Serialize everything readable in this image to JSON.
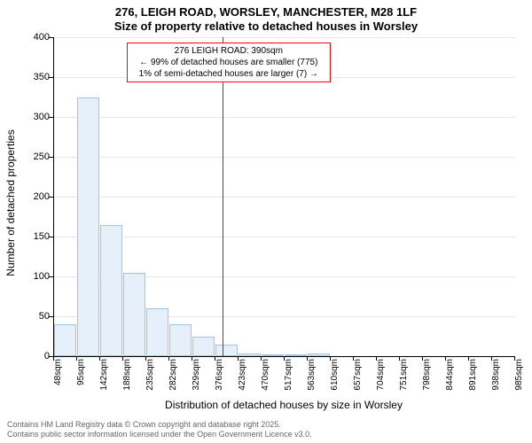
{
  "chart": {
    "type": "histogram",
    "title_line1": "276, LEIGH ROAD, WORSLEY, MANCHESTER, M28 1LF",
    "title_line2": "Size of property relative to detached houses in Worsley",
    "y_axis_label": "Number of detached properties",
    "x_axis_label": "Distribution of detached houses by size in Worsley",
    "y_ticks": [
      0,
      50,
      100,
      150,
      200,
      250,
      300,
      350,
      400
    ],
    "ylim": [
      0,
      400
    ],
    "x_ticks": [
      "48sqm",
      "95sqm",
      "142sqm",
      "188sqm",
      "235sqm",
      "282sqm",
      "329sqm",
      "376sqm",
      "423sqm",
      "470sqm",
      "517sqm",
      "563sqm",
      "610sqm",
      "657sqm",
      "704sqm",
      "751sqm",
      "798sqm",
      "844sqm",
      "891sqm",
      "938sqm",
      "985sqm"
    ],
    "bars": [
      {
        "x": 0,
        "value": 40
      },
      {
        "x": 1,
        "value": 325
      },
      {
        "x": 2,
        "value": 165
      },
      {
        "x": 3,
        "value": 105
      },
      {
        "x": 4,
        "value": 60
      },
      {
        "x": 5,
        "value": 40
      },
      {
        "x": 6,
        "value": 25
      },
      {
        "x": 7,
        "value": 15
      },
      {
        "x": 8,
        "value": 3
      },
      {
        "x": 9,
        "value": 2
      },
      {
        "x": 10,
        "value": 2
      },
      {
        "x": 11,
        "value": 3
      },
      {
        "x": 12,
        "value": 0
      },
      {
        "x": 13,
        "value": 0
      },
      {
        "x": 14,
        "value": 0
      },
      {
        "x": 15,
        "value": 0
      },
      {
        "x": 16,
        "value": 0
      },
      {
        "x": 17,
        "value": 0
      },
      {
        "x": 18,
        "value": 0
      },
      {
        "x": 19,
        "value": 0
      }
    ],
    "bar_fill": "#e6f0fa",
    "bar_stroke": "#9ec5e8",
    "grid_color": "#e6e6e6",
    "background_color": "#ffffff",
    "marker_value": 390,
    "marker_color": "#ff0000",
    "annotation": {
      "line1": "276 LEIGH ROAD: 390sqm",
      "line2": "← 99% of detached houses are smaller (775)",
      "line3": "1% of semi-detached houses are larger (7) →"
    },
    "footer_line1": "Contains HM Land Registry data © Crown copyright and database right 2025.",
    "footer_line2": "Contains public sector information licensed under the Open Government Licence v3.0."
  }
}
